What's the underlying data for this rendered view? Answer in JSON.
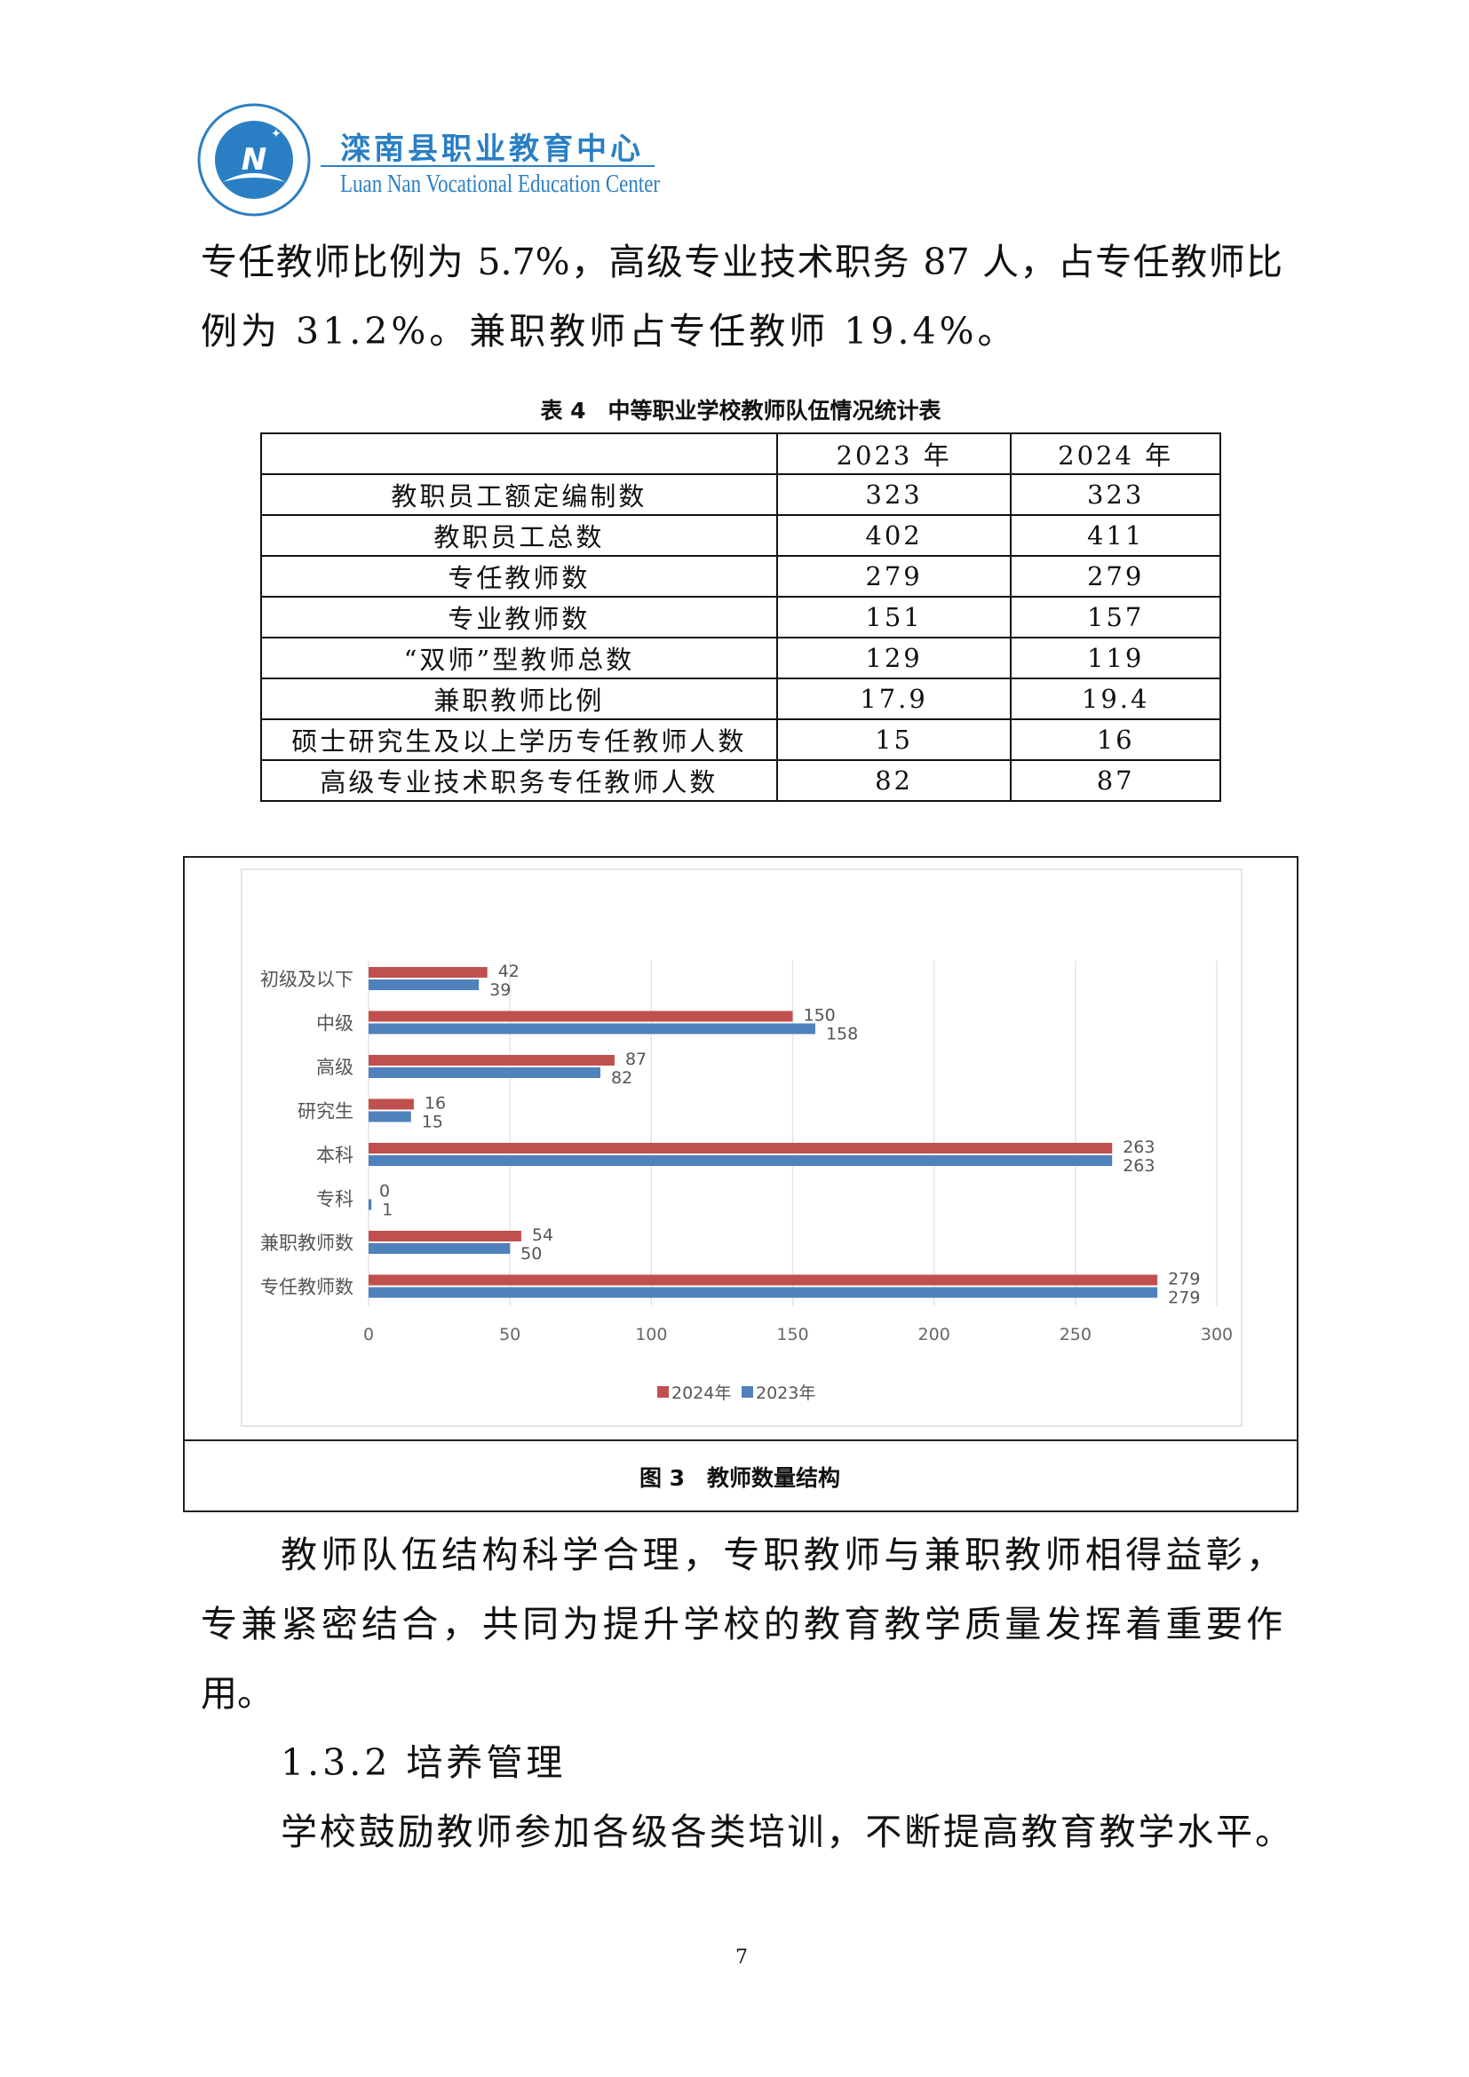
{
  "header": {
    "logo_cn": "滦南县职业教育中心",
    "logo_en": "Luan Nan Vocational Education Center",
    "seal_text": "滦南县职业教育中心 Luan Nan Vocational Education Center",
    "seal_letter": "N",
    "brand_color": "#2a7fc4"
  },
  "para1": [
    "专任教师比例为 5.7%，高级专业技术职务 87 人，占专任教师比",
    "例为 31.2%。兼职教师占专任教师 19.4%。"
  ],
  "table": {
    "caption": "表 4　中等职业学校教师队伍情况统计表",
    "headers": [
      "",
      "2023 年",
      "2024 年"
    ],
    "rows": [
      [
        "教职员工额定编制数",
        "323",
        "323"
      ],
      [
        "教职员工总数",
        "402",
        "411"
      ],
      [
        "专任教师数",
        "279",
        "279"
      ],
      [
        "专业教师数",
        "151",
        "157"
      ],
      [
        "“双师”型教师总数",
        "129",
        "119"
      ],
      [
        "兼职教师比例",
        "17.9",
        "19.4"
      ],
      [
        "硕士研究生及以上学历专任教师人数",
        "15",
        "16"
      ],
      [
        "高级专业技术职务专任教师人数",
        "82",
        "87"
      ]
    ]
  },
  "chart_data": {
    "type": "bar",
    "orientation": "horizontal",
    "categories": [
      "初级及以下",
      "中级",
      "高级",
      "研究生",
      "本科",
      "专科",
      "兼职教师数",
      "专任教师数"
    ],
    "series": [
      {
        "name": "2024年",
        "color": "#c0504d",
        "values": [
          42,
          150,
          87,
          16,
          263,
          0,
          54,
          279
        ]
      },
      {
        "name": "2023年",
        "color": "#4f81bd",
        "values": [
          39,
          158,
          82,
          15,
          263,
          1,
          50,
          279
        ]
      }
    ],
    "xlim": [
      0,
      300
    ],
    "xticks": [
      "0",
      "50",
      "100",
      "150",
      "200",
      "250",
      "300"
    ],
    "grid": true,
    "data_labels": true,
    "legend": "bottom"
  },
  "figure_caption": "图 3　教师数量结构",
  "para2": [
    "教师队伍结构科学合理，专职教师与兼职教师相得益彰，",
    "专兼紧密结合，共同为提升学校的教育教学质量发挥着重要作",
    "用。"
  ],
  "heading": "1.3.2 培养管理",
  "para3": "学校鼓励教师参加各级各类培训，不断提高教育教学水平。",
  "page_number": "7"
}
